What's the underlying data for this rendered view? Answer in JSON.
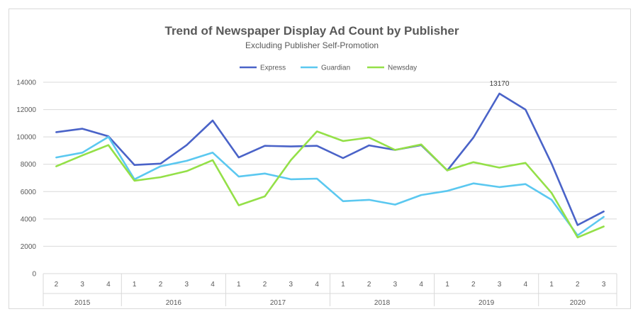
{
  "chart_data": {
    "type": "line",
    "title": "Trend of Newspaper Display Ad Count by Publisher",
    "subtitle": "Excluding Publisher Self-Promotion",
    "xlabel": "",
    "ylabel": "",
    "ylim": [
      0,
      14000
    ],
    "y_ticks": [
      "0",
      "2000",
      "4000",
      "6000",
      "8000",
      "10000",
      "12000",
      "14000"
    ],
    "grid": true,
    "legend_position": "top",
    "quarters": [
      "2",
      "3",
      "4",
      "1",
      "2",
      "3",
      "4",
      "1",
      "2",
      "3",
      "4",
      "1",
      "2",
      "3",
      "4",
      "1",
      "2",
      "3",
      "4",
      "1",
      "2",
      "3"
    ],
    "years": [
      {
        "label": "2015",
        "span": 3
      },
      {
        "label": "2016",
        "span": 4
      },
      {
        "label": "2017",
        "span": 4
      },
      {
        "label": "2018",
        "span": 4
      },
      {
        "label": "2019",
        "span": 4
      },
      {
        "label": "2020",
        "span": 3
      }
    ],
    "series": [
      {
        "name": "Express",
        "color": "#4a63c8",
        "values": [
          10350,
          10600,
          10050,
          7950,
          8050,
          9400,
          11200,
          8500,
          9350,
          9300,
          9350,
          8450,
          9380,
          9050,
          9400,
          7550,
          9950,
          13170,
          12000,
          8050,
          3550,
          4550
        ]
      },
      {
        "name": "Guardian",
        "color": "#5bc8f0",
        "values": [
          8500,
          8850,
          10000,
          6900,
          7850,
          8250,
          8850,
          7100,
          7320,
          6900,
          6950,
          5300,
          5400,
          5050,
          5750,
          6050,
          6600,
          6330,
          6550,
          5400,
          2800,
          4150
        ]
      },
      {
        "name": "Newsday",
        "color": "#94e048",
        "values": [
          7850,
          8650,
          9400,
          6800,
          7050,
          7500,
          8300,
          5000,
          5650,
          8300,
          10400,
          9700,
          9950,
          9050,
          9450,
          7550,
          8150,
          7750,
          8100,
          5900,
          2650,
          3450
        ]
      }
    ],
    "annotations": [
      {
        "series": "Express",
        "index": 17,
        "text": "13170"
      }
    ]
  }
}
